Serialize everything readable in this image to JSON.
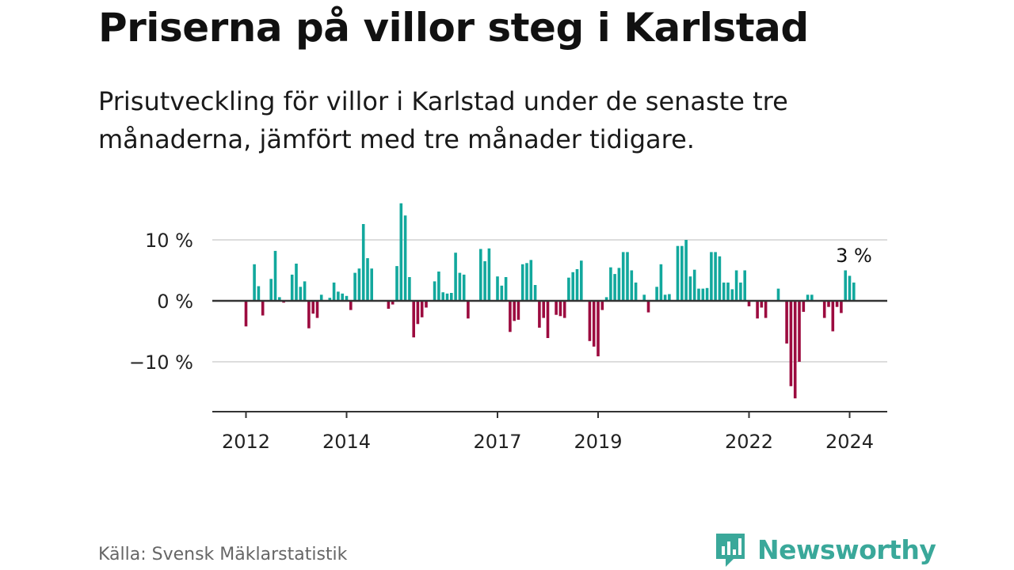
{
  "header": {
    "title": "Priserna på villor steg i Karlstad",
    "subtitle": "Prisutveckling för villor i Karlstad under de senaste tre månaderna, jämfört med tre månader tidigare."
  },
  "footer": {
    "source": "Källa: Svensk Mäklarstatistik",
    "brand": "Newsworthy"
  },
  "colors": {
    "positive": "#12a89d",
    "negative": "#9c0b3f",
    "grid": "#dddddd",
    "axis": "#333333",
    "brand": "#3aa89a"
  },
  "chart_data": {
    "type": "bar",
    "title": "Priserna på villor steg i Karlstad",
    "xlabel": "",
    "ylabel": "",
    "ylim": [
      -18,
      17
    ],
    "y_ticks": [
      {
        "value": 10,
        "label": "10 %"
      },
      {
        "value": 0,
        "label": "0 %"
      },
      {
        "value": -10,
        "label": "−10 %"
      }
    ],
    "x_start": 2012.0,
    "x_step": 0.08333,
    "x_ticks": [
      {
        "value": 2012,
        "label": "2012"
      },
      {
        "value": 2014,
        "label": "2014"
      },
      {
        "value": 2017,
        "label": "2017"
      },
      {
        "value": 2019,
        "label": "2019"
      },
      {
        "value": 2022,
        "label": "2022"
      },
      {
        "value": 2024,
        "label": "2024"
      }
    ],
    "values": [
      -4.2,
      0,
      6,
      2.4,
      -2.4,
      0,
      3.6,
      8.2,
      0.6,
      -0.3,
      0,
      4.3,
      6.1,
      2.3,
      3.2,
      -4.5,
      -2.1,
      -2.8,
      1.0,
      0,
      0.5,
      3.0,
      1.5,
      1.2,
      0.8,
      -1.5,
      4.6,
      5.3,
      12.6,
      7.0,
      5.3,
      0,
      0,
      0,
      -1.3,
      -0.6,
      5.7,
      16.0,
      14.0,
      3.9,
      -6.0,
      -3.8,
      -2.7,
      -1.1,
      0,
      3.2,
      4.8,
      1.4,
      1.2,
      1.3,
      7.9,
      4.6,
      4.3,
      -2.9,
      0,
      0,
      8.5,
      6.5,
      8.6,
      0,
      4.0,
      2.5,
      3.9,
      -5.1,
      -3.3,
      -3.1,
      6.0,
      6.2,
      6.7,
      2.6,
      -4.4,
      -2.8,
      -6.1,
      0,
      -2.3,
      -2.5,
      -2.8,
      3.8,
      4.7,
      5.2,
      6.6,
      0,
      -6.6,
      -7.5,
      -9.1,
      -1.5,
      0.6,
      5.5,
      4.4,
      5.4,
      8.0,
      8.0,
      5.0,
      3.0,
      0,
      1.0,
      -1.9,
      0,
      2.3,
      6.0,
      1.0,
      1.1,
      0,
      9.0,
      9.0,
      10.0,
      4.0,
      5.1,
      2.0,
      2.0,
      2.1,
      8.0,
      8.0,
      7.3,
      3.0,
      3.0,
      1.9,
      5.0,
      3.0,
      5.0,
      -0.9,
      0,
      -2.9,
      -1.1,
      -2.8,
      0,
      0,
      2.0,
      0,
      -7.0,
      -14.0,
      -16.0,
      -10.0,
      -1.8,
      1.0,
      1.0,
      0,
      0,
      -2.8,
      -1.0,
      -5.0,
      -1.0,
      -2.0,
      5.0,
      4.1,
      3.0
    ],
    "annotation": {
      "text": "3 %",
      "value": 3
    }
  }
}
